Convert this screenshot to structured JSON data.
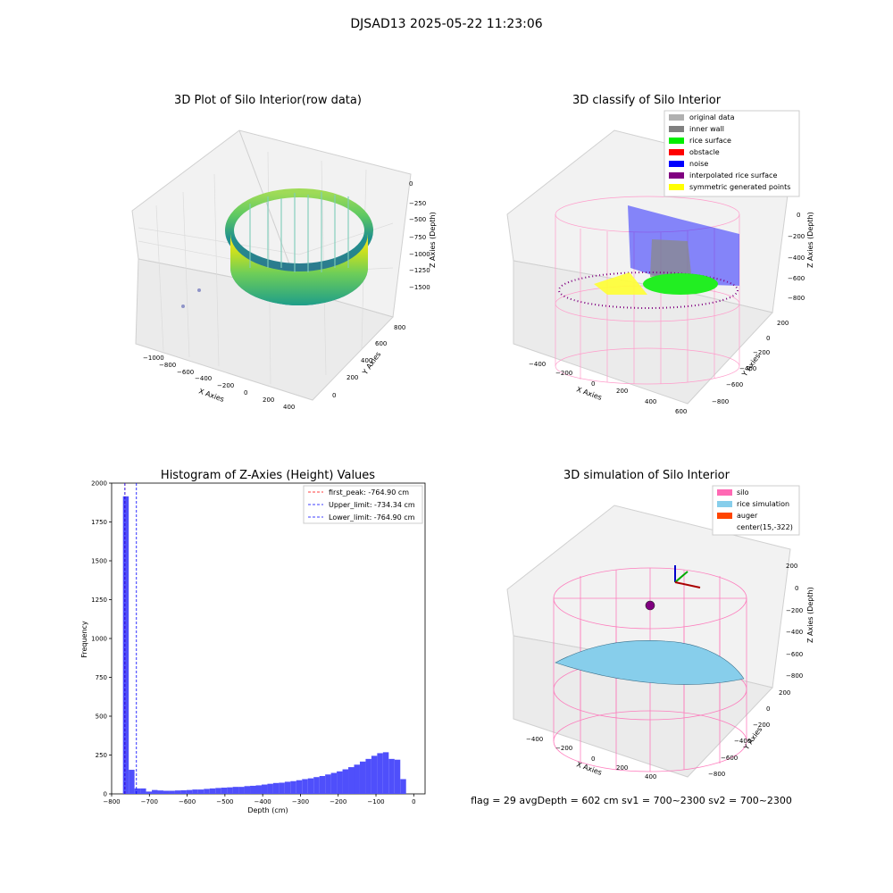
{
  "figure_title": "DJSAD13 2025-05-22 11:23:06",
  "status_line": "flag = 29  avgDepth = 602 cm  sv1 = 700~2300  sv2 = 700~2300",
  "colors": {
    "histogram_bar": "#4f4ffb",
    "first_peak_line": "#ff0000",
    "limit_line": "#0000ff",
    "silo_wire": "#ff69b4",
    "rice_sim": "#87ceeb",
    "auger": "#ff4500"
  },
  "chart_data": [
    {
      "id": "raw",
      "type": "scatter",
      "title": "3D Plot of Silo Interior(row data)",
      "xlabel": "X Axies",
      "ylabel": "Y Axies",
      "zlabel": "Z Axies (Depth)",
      "x_ticks": [
        "−1000",
        "−800",
        "−600",
        "−400",
        "−200",
        "0",
        "200",
        "400"
      ],
      "y_ticks": [
        "0",
        "200",
        "400",
        "600",
        "800"
      ],
      "z_ticks": [
        "0",
        "−250",
        "−500",
        "−750",
        "−1000",
        "−1250",
        "−1500"
      ],
      "colormap": "viridis"
    },
    {
      "id": "classify",
      "type": "scatter",
      "title": "3D classify of Silo Interior",
      "xlabel": "X Axies",
      "ylabel": "Y Axies",
      "zlabel": "Z Axies (Depth)",
      "x_ticks": [
        "−400",
        "−200",
        "0",
        "200",
        "400",
        "600"
      ],
      "y_ticks": [
        "200",
        "0",
        "−200",
        "−400",
        "−600",
        "−800"
      ],
      "z_ticks": [
        "0",
        "−200",
        "−400",
        "−600",
        "−800"
      ],
      "legend": [
        {
          "label": "original data",
          "color": "#b0b0b0"
        },
        {
          "label": "inner wall",
          "color": "#808080"
        },
        {
          "label": "rice surface",
          "color": "#00ee00"
        },
        {
          "label": "obstacle",
          "color": "#ff0000"
        },
        {
          "label": "noise",
          "color": "#0000ff"
        },
        {
          "label": "interpolated rice surface",
          "color": "#800080"
        },
        {
          "label": "symmetric generated points",
          "color": "#ffff00"
        }
      ]
    },
    {
      "id": "hist",
      "type": "bar",
      "title": "Histogram of Z-Axies (Height) Values",
      "xlabel": "Depth (cm)",
      "ylabel": "Frequency",
      "xlim": [
        -800,
        30
      ],
      "ylim": [
        0,
        2000
      ],
      "x_ticks": [
        "−800",
        "−700",
        "−600",
        "−500",
        "−400",
        "−300",
        "−200",
        "−100",
        "0"
      ],
      "y_ticks": [
        "0",
        "250",
        "500",
        "750",
        "1000",
        "1250",
        "1500",
        "1750",
        "2000"
      ],
      "bin_start": -770,
      "bin_width": 15.3,
      "values": [
        1915,
        155,
        35,
        35,
        15,
        25,
        22,
        20,
        20,
        22,
        23,
        25,
        28,
        28,
        32,
        35,
        38,
        40,
        42,
        45,
        45,
        50,
        52,
        55,
        60,
        65,
        70,
        72,
        78,
        82,
        88,
        95,
        100,
        108,
        115,
        125,
        135,
        145,
        158,
        172,
        188,
        208,
        225,
        245,
        262,
        268,
        225,
        220,
        95
      ],
      "vlines": [
        {
          "x": -764.9,
          "color": "#ff0000"
        },
        {
          "x": -734.34,
          "color": "#0000ff"
        },
        {
          "x": -764.9,
          "color": "#0000ff"
        }
      ],
      "legend": [
        {
          "label": "first_peak: -764.90 cm",
          "color": "#ff0000"
        },
        {
          "label": "Upper_limit: -734.34 cm",
          "color": "#0000ff"
        },
        {
          "label": "Lower_limit: -764.90 cm",
          "color": "#0000ff"
        }
      ],
      "grid": false
    },
    {
      "id": "simulation",
      "type": "scatter",
      "title": "3D simulation of Silo Interior",
      "xlabel": "X Axies",
      "ylabel": "Y Axies",
      "zlabel": "Z Axies (Depth)",
      "x_ticks": [
        "−400",
        "−200",
        "0",
        "200",
        "400"
      ],
      "y_ticks": [
        "200",
        "0",
        "−200",
        "−400",
        "−600",
        "−800"
      ],
      "z_ticks": [
        "200",
        "0",
        "−200",
        "−400",
        "−600",
        "−800"
      ],
      "legend": [
        {
          "label": "silo",
          "color": "#ff69b4"
        },
        {
          "label": "rice simulation",
          "color": "#87ceeb"
        },
        {
          "label": "auger",
          "color": "#ff4500"
        },
        {
          "label": "center(15,-322)",
          "color": ""
        }
      ]
    }
  ]
}
